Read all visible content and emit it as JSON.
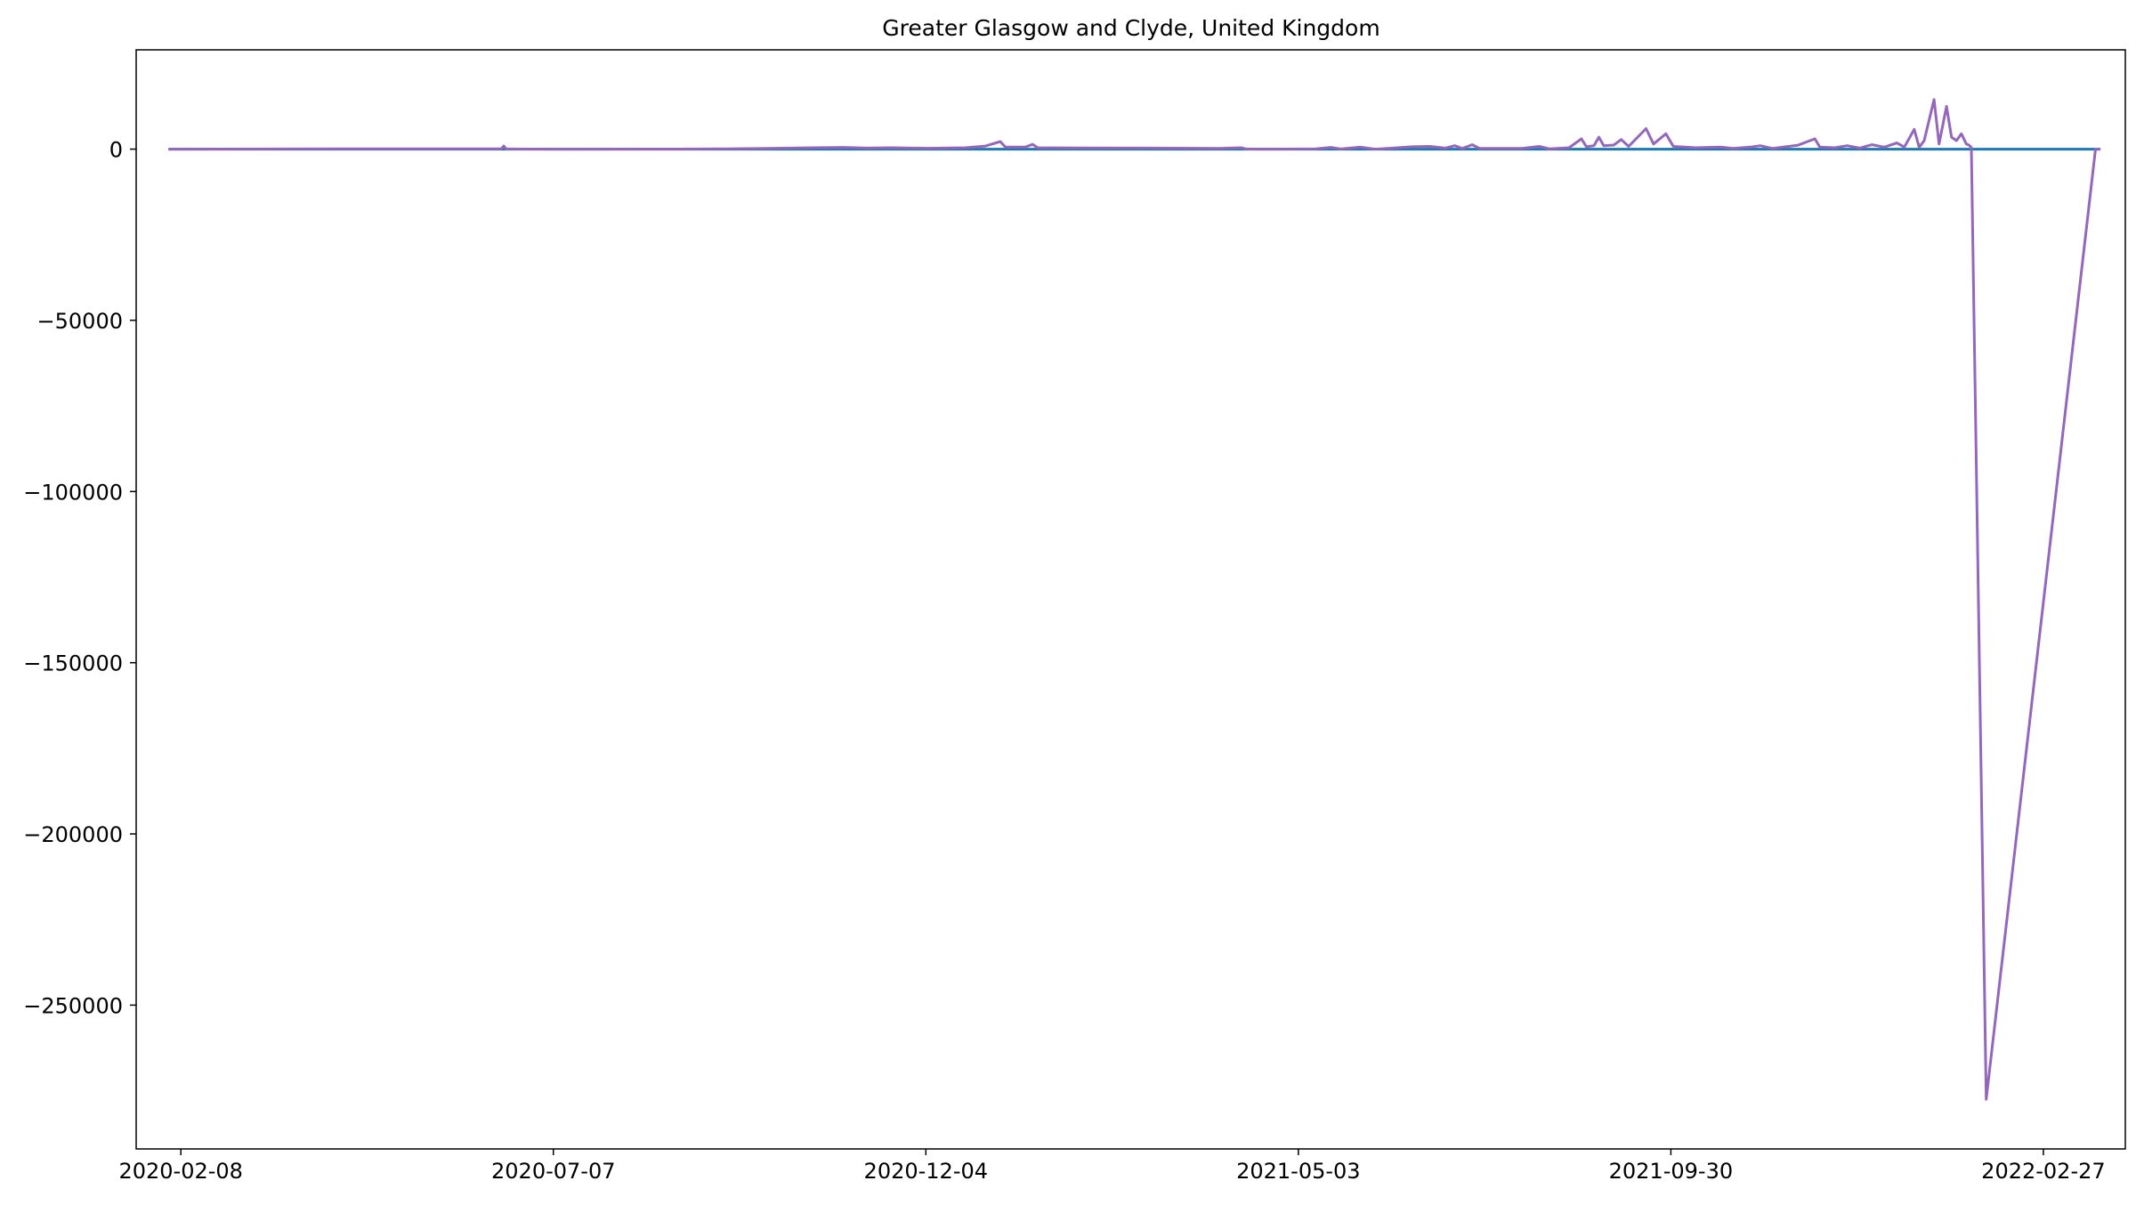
{
  "chart_data": {
    "type": "line",
    "title": "Greater Glasgow and Clyde, United Kingdom",
    "xlabel": "",
    "ylabel": "",
    "x_axis": "date",
    "xlim": [
      "2020-01-21",
      "2022-04-01"
    ],
    "ylim": [
      -292000,
      29000
    ],
    "x_ticks": [
      "2020-02-08",
      "2020-07-07",
      "2020-12-04",
      "2021-05-03",
      "2021-09-30",
      "2022-02-27"
    ],
    "y_ticks": [
      0,
      -50000,
      -100000,
      -150000,
      -200000,
      -250000
    ],
    "y_tick_labels": [
      "0",
      "−50000",
      "−100000",
      "−150000",
      "−200000",
      "−250000"
    ],
    "grid": false,
    "legend": "none",
    "series": [
      {
        "color": "#1f77b4",
        "points": [
          [
            "2020-02-03",
            0
          ],
          [
            "2022-03-22",
            0
          ]
        ]
      },
      {
        "color": "#9467bd",
        "points": [
          [
            "2020-02-03",
            0
          ],
          [
            "2020-03-20",
            40
          ],
          [
            "2020-04-20",
            100
          ],
          [
            "2020-05-20",
            60
          ],
          [
            "2020-06-16",
            80
          ],
          [
            "2020-06-17",
            900
          ],
          [
            "2020-06-18",
            100
          ],
          [
            "2020-06-25",
            20
          ],
          [
            "2020-07-15",
            0
          ],
          [
            "2020-08-20",
            20
          ],
          [
            "2020-09-15",
            80
          ],
          [
            "2020-10-01",
            200
          ],
          [
            "2020-10-20",
            400
          ],
          [
            "2020-11-01",
            500
          ],
          [
            "2020-11-10",
            300
          ],
          [
            "2020-11-20",
            400
          ],
          [
            "2020-12-05",
            250
          ],
          [
            "2020-12-20",
            400
          ],
          [
            "2020-12-28",
            900
          ],
          [
            "2021-01-03",
            2200
          ],
          [
            "2021-01-05",
            600
          ],
          [
            "2021-01-13",
            600
          ],
          [
            "2021-01-16",
            1400
          ],
          [
            "2021-01-18",
            400
          ],
          [
            "2021-02-01",
            350
          ],
          [
            "2021-03-01",
            300
          ],
          [
            "2021-04-01",
            200
          ],
          [
            "2021-04-10",
            400
          ],
          [
            "2021-04-12",
            50
          ],
          [
            "2021-04-20",
            0
          ],
          [
            "2021-05-10",
            100
          ],
          [
            "2021-05-16",
            500
          ],
          [
            "2021-05-20",
            50
          ],
          [
            "2021-05-28",
            600
          ],
          [
            "2021-06-03",
            0
          ],
          [
            "2021-06-10",
            300
          ],
          [
            "2021-06-18",
            700
          ],
          [
            "2021-06-25",
            800
          ],
          [
            "2021-07-01",
            300
          ],
          [
            "2021-07-05",
            1000
          ],
          [
            "2021-07-08",
            200
          ],
          [
            "2021-07-12",
            1300
          ],
          [
            "2021-07-15",
            200
          ],
          [
            "2021-08-01",
            200
          ],
          [
            "2021-08-08",
            800
          ],
          [
            "2021-08-12",
            100
          ],
          [
            "2021-08-20",
            400
          ],
          [
            "2021-08-25",
            3000
          ],
          [
            "2021-08-27",
            700
          ],
          [
            "2021-08-30",
            1000
          ],
          [
            "2021-09-01",
            3500
          ],
          [
            "2021-09-03",
            1000
          ],
          [
            "2021-09-07",
            1200
          ],
          [
            "2021-09-10",
            2800
          ],
          [
            "2021-09-13",
            800
          ],
          [
            "2021-09-20",
            6000
          ],
          [
            "2021-09-23",
            1500
          ],
          [
            "2021-09-28",
            4500
          ],
          [
            "2021-10-01",
            800
          ],
          [
            "2021-10-10",
            400
          ],
          [
            "2021-10-20",
            600
          ],
          [
            "2021-10-25",
            200
          ],
          [
            "2021-11-01",
            600
          ],
          [
            "2021-11-05",
            1000
          ],
          [
            "2021-11-10",
            200
          ],
          [
            "2021-11-20",
            1100
          ],
          [
            "2021-11-27",
            3000
          ],
          [
            "2021-11-29",
            600
          ],
          [
            "2021-12-05",
            400
          ],
          [
            "2021-12-10",
            1000
          ],
          [
            "2021-12-15",
            300
          ],
          [
            "2021-12-20",
            1300
          ],
          [
            "2021-12-25",
            600
          ],
          [
            "2021-12-30",
            1800
          ],
          [
            "2022-01-02",
            600
          ],
          [
            "2022-01-06",
            5800
          ],
          [
            "2022-01-08",
            500
          ],
          [
            "2022-01-10",
            2500
          ],
          [
            "2022-01-14",
            14500
          ],
          [
            "2022-01-16",
            1500
          ],
          [
            "2022-01-19",
            12500
          ],
          [
            "2022-01-21",
            3500
          ],
          [
            "2022-01-23",
            2500
          ],
          [
            "2022-01-25",
            4500
          ],
          [
            "2022-01-27",
            1500
          ],
          [
            "2022-01-28",
            1200
          ],
          [
            "2022-01-29",
            500
          ],
          [
            "2022-02-04",
            -277500
          ],
          [
            "2022-03-20",
            0
          ],
          [
            "2022-03-22",
            0
          ]
        ]
      }
    ]
  }
}
